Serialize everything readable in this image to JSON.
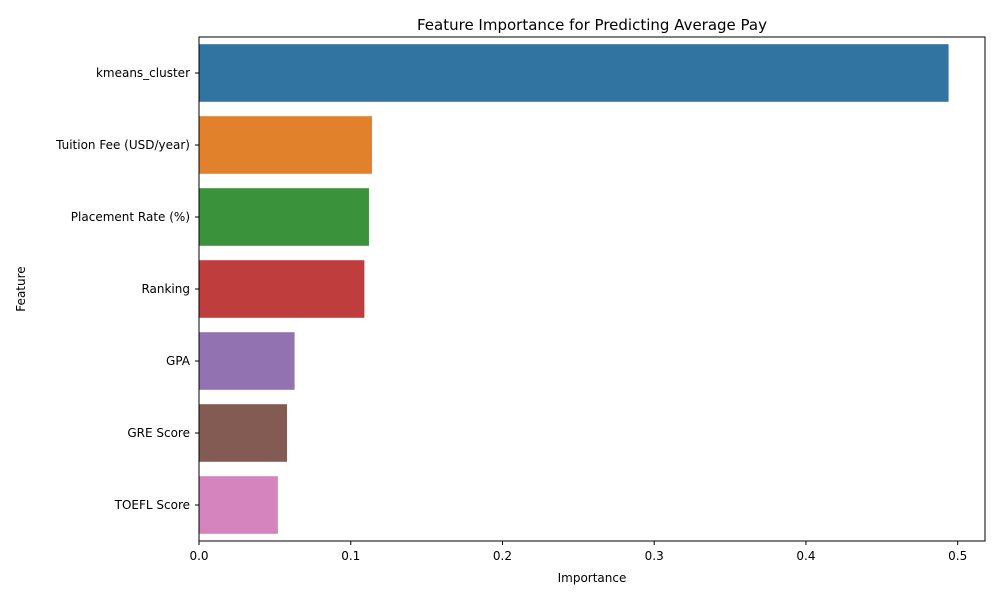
{
  "chart_data": {
    "type": "bar",
    "orientation": "horizontal",
    "title": "Feature Importance for Predicting Average Pay",
    "xlabel": "Importance",
    "ylabel": "Feature",
    "xlim": [
      0,
      0.518
    ],
    "xticks": [
      0.0,
      0.1,
      0.2,
      0.3,
      0.4,
      0.5
    ],
    "xtick_labels": [
      "0.0",
      "0.1",
      "0.2",
      "0.3",
      "0.4",
      "0.5"
    ],
    "grid": false,
    "categories": [
      "kmeans_cluster",
      "Tuition Fee (USD/year)",
      "Placement Rate (%)",
      "Ranking",
      "GPA",
      "GRE Score",
      "TOEFL Score"
    ],
    "values": [
      0.494,
      0.114,
      0.112,
      0.109,
      0.063,
      0.058,
      0.052
    ],
    "colors": [
      "#3274a1",
      "#e1812c",
      "#3a923a",
      "#c03d3e",
      "#9372b2",
      "#845b53",
      "#d684bd"
    ]
  }
}
